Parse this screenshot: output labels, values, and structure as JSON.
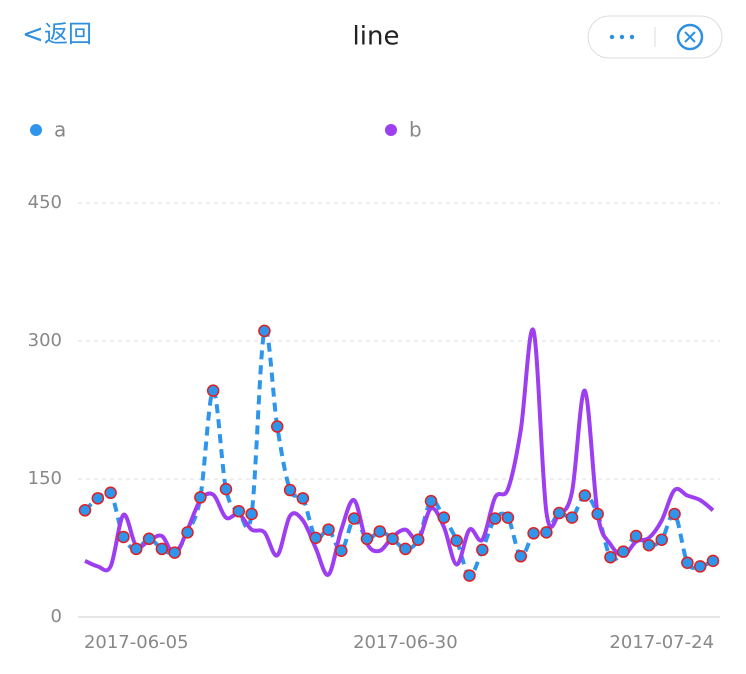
{
  "header": {
    "back": "返回",
    "title": "line"
  },
  "chart_data": {
    "type": "line",
    "categories": [
      null,
      null,
      null,
      null,
      "2017-06-05",
      null,
      null,
      null,
      null,
      null,
      null,
      null,
      null,
      null,
      null,
      null,
      null,
      null,
      null,
      null,
      null,
      null,
      null,
      null,
      null,
      "2017-06-30",
      null,
      null,
      null,
      null,
      null,
      null,
      null,
      null,
      null,
      null,
      null,
      null,
      null,
      null,
      null,
      null,
      null,
      null,
      null,
      "2017-07-24",
      null,
      null,
      null,
      null
    ],
    "series": [
      {
        "name": "a",
        "color": "#2e95ec",
        "values": [
          116,
          129,
          135,
          87,
          74,
          85,
          74,
          70,
          92,
          130,
          246,
          139,
          115,
          112,
          311,
          207,
          138,
          129,
          86,
          95,
          72,
          107,
          85,
          93,
          85,
          74,
          84,
          126,
          108,
          83,
          45,
          73,
          107,
          108,
          66,
          91,
          92,
          113,
          108,
          132,
          112,
          65,
          71,
          88,
          78,
          84,
          112,
          59,
          55,
          61
        ]
      },
      {
        "name": "b",
        "color": "#9d3ff0",
        "values": [
          61,
          55,
          55,
          111,
          77,
          83,
          88,
          68,
          95,
          127,
          133,
          108,
          112,
          95,
          92,
          67,
          110,
          105,
          75,
          46,
          95,
          127,
          80,
          72,
          87,
          95,
          84,
          118,
          98,
          57,
          95,
          84,
          130,
          139,
          203,
          311,
          114,
          112,
          136,
          246,
          112,
          79,
          67,
          82,
          86,
          105,
          138,
          132,
          127,
          116
        ]
      }
    ],
    "ylim": [
      0,
      450
    ],
    "yticks": [
      0,
      150,
      300,
      450
    ],
    "grid": true
  }
}
